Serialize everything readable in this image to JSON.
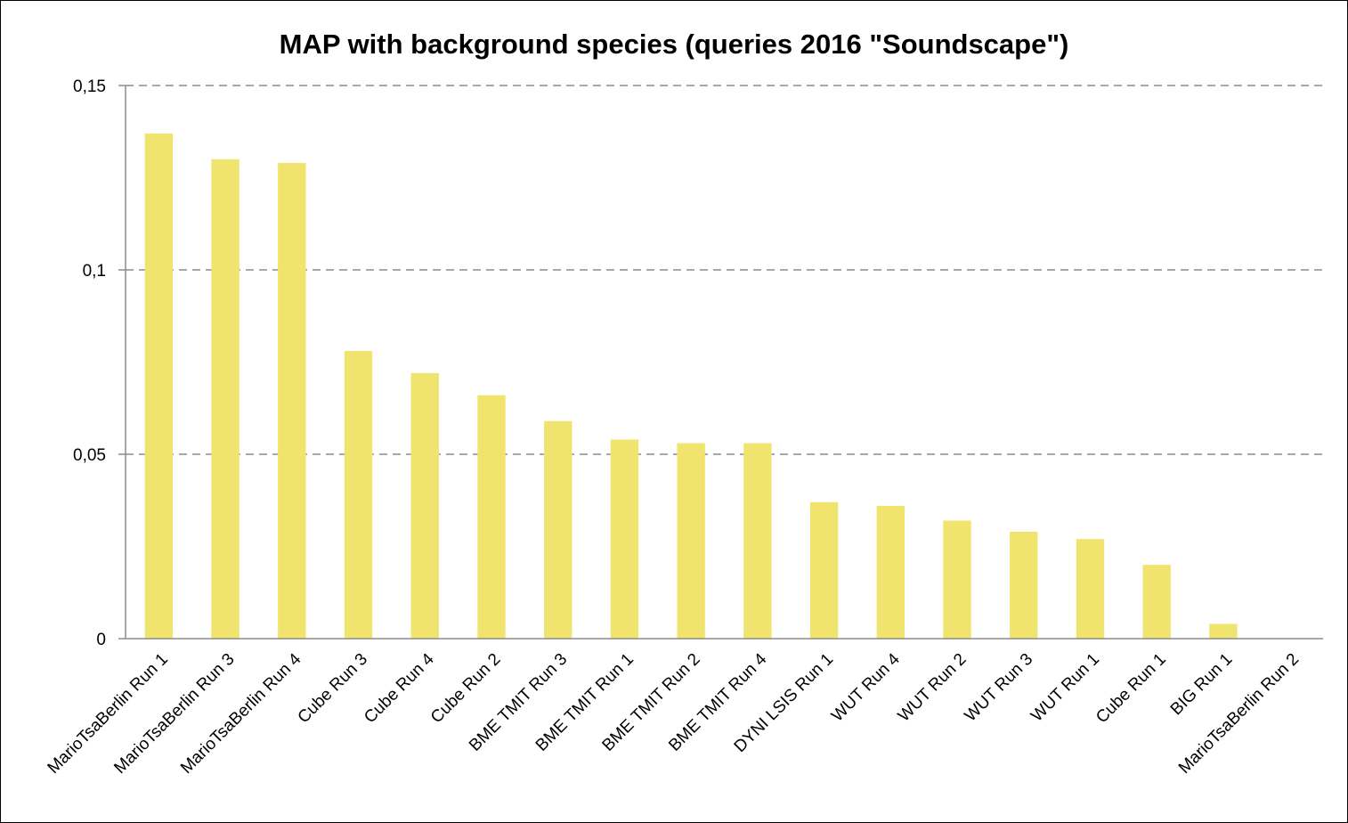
{
  "chart_data": {
    "type": "bar",
    "title": "MAP with background species (queries 2016 \"Soundscape\")",
    "xlabel": "",
    "ylabel": "",
    "ylim": [
      0,
      0.15
    ],
    "yticks": [
      0,
      0.05,
      0.1,
      0.15
    ],
    "ytick_labels": [
      "0",
      "0,05",
      "0,1",
      "0,15"
    ],
    "grid": "horizontal dashed",
    "legend": "none",
    "bar_color": "#F0E36E",
    "categories": [
      "MarioTsaBerlin Run 1",
      "MarioTsaBerlin Run 3",
      "MarioTsaBerlin Run 4",
      "Cube Run 3",
      "Cube Run 4",
      "Cube Run 2",
      "BME TMIT Run 3",
      "BME TMIT Run 1",
      "BME TMIT Run 2",
      "BME TMIT Run 4",
      "DYNI LSIS Run 1",
      "WUT Run 4",
      "WUT Run 2",
      "WUT Run 3",
      "WUT Run 1",
      "Cube Run 1",
      "BIG Run 1",
      "MarioTsaBerlin Run 2"
    ],
    "values": [
      0.137,
      0.13,
      0.129,
      0.078,
      0.072,
      0.066,
      0.059,
      0.054,
      0.053,
      0.053,
      0.037,
      0.036,
      0.032,
      0.029,
      0.027,
      0.02,
      0.004,
      0.0
    ]
  }
}
